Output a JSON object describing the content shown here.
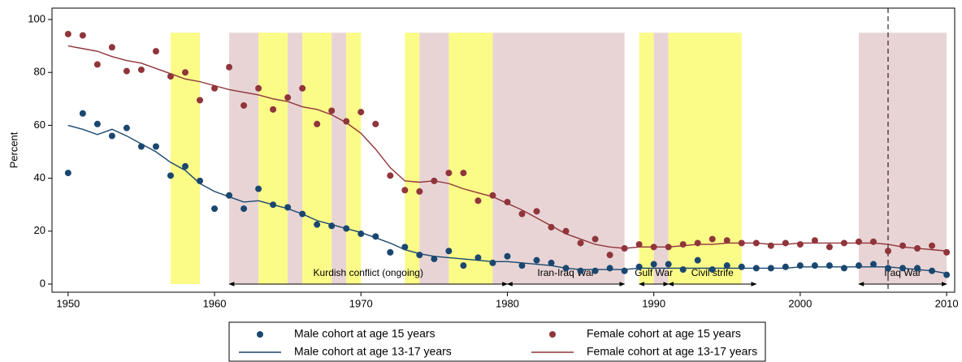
{
  "chart_data": {
    "type": "scatter",
    "y_label": "Percent",
    "x": [
      1950,
      1951,
      1952,
      1953,
      1954,
      1955,
      1956,
      1957,
      1958,
      1959,
      1960,
      1961,
      1962,
      1963,
      1964,
      1965,
      1966,
      1967,
      1968,
      1969,
      1970,
      1971,
      1972,
      1973,
      1974,
      1975,
      1976,
      1977,
      1978,
      1979,
      1980,
      1981,
      1982,
      1983,
      1984,
      1985,
      1986,
      1987,
      1988,
      1989,
      1990,
      1991,
      1992,
      1993,
      1994,
      1995,
      1996,
      1997,
      1998,
      1999,
      2000,
      2001,
      2002,
      2003,
      2004,
      2005,
      2006,
      2007,
      2008,
      2009,
      2010
    ],
    "series": [
      {
        "name": "Male cohort at age 15 years",
        "type": "scatter",
        "color": "#1a476f",
        "values": [
          42,
          64.5,
          60.5,
          56,
          59,
          52,
          52,
          41,
          44.5,
          39,
          28.5,
          33.5,
          28.5,
          36,
          30,
          29,
          26.5,
          22.5,
          22,
          21,
          19,
          18,
          12,
          14,
          11,
          9.5,
          12.5,
          7,
          10,
          8,
          10.5,
          7,
          9,
          8,
          6,
          5,
          5,
          6,
          5,
          6.5,
          7.5,
          7.5,
          5.5,
          9,
          5.5,
          7,
          6.5,
          6,
          6,
          6.5,
          7,
          7,
          7,
          6,
          7,
          7.5,
          6,
          6,
          6,
          5,
          3.5
        ]
      },
      {
        "name": "Female cohort at age 15 years",
        "type": "scatter",
        "color": "#90353b",
        "values": [
          94.5,
          94,
          83,
          89.5,
          80.5,
          81,
          88,
          78.5,
          80,
          69.5,
          74,
          82,
          67.5,
          74,
          66,
          70.5,
          74,
          60.5,
          65.5,
          61.5,
          65,
          60.5,
          41,
          35.5,
          35,
          39,
          42,
          42,
          31.5,
          33.5,
          31,
          26.5,
          27.5,
          21.5,
          20,
          15.5,
          17,
          11,
          13.5,
          15,
          14,
          14,
          15,
          15.5,
          17,
          16.5,
          15.5,
          15.5,
          14.5,
          15.5,
          15,
          16.5,
          14,
          15.5,
          16,
          16,
          12.5,
          14.5,
          13.5,
          14.5,
          12
        ]
      },
      {
        "name": "Male cohort at age 13-17 years",
        "type": "line",
        "color": "#1a476f",
        "values": [
          60,
          58.5,
          56.5,
          58.5,
          56,
          53,
          50,
          46,
          43,
          38,
          35,
          33,
          31,
          31.5,
          30,
          28.5,
          26.5,
          24,
          22.5,
          21,
          19.5,
          17.5,
          15.5,
          13,
          11.5,
          10.5,
          10,
          9.5,
          9,
          8.5,
          8.5,
          8,
          7.5,
          7,
          6,
          5.5,
          5.5,
          5.5,
          5.5,
          6,
          6,
          6,
          6,
          6,
          6,
          6,
          6,
          6,
          6,
          6,
          6.5,
          6.5,
          6.5,
          6.5,
          6.5,
          6.5,
          6.5,
          6,
          5.5,
          5,
          4
        ]
      },
      {
        "name": "Female cohort at age 13-17 years",
        "type": "line",
        "color": "#90353b",
        "values": [
          90,
          89,
          88,
          86,
          84.5,
          83.5,
          81.5,
          79.5,
          77.5,
          76.5,
          75,
          73.5,
          72.5,
          71.5,
          70,
          69,
          67,
          66,
          64,
          61,
          57,
          51,
          44,
          39,
          38.5,
          39,
          38,
          36,
          34.5,
          33,
          30.5,
          28,
          25,
          22,
          19,
          17,
          15,
          14,
          13.5,
          14,
          14,
          14,
          14.5,
          15,
          15,
          15.5,
          15.5,
          15.5,
          15,
          15,
          15.5,
          15.5,
          15.5,
          15.5,
          15.5,
          15.5,
          15,
          14,
          13.5,
          13,
          12.5
        ]
      }
    ],
    "xlim": [
      1948.9,
      2010.55
    ],
    "ylim": [
      -3.07,
      104.3
    ],
    "xticks": [
      1950,
      1960,
      1970,
      1980,
      1990,
      2000,
      2010
    ],
    "yticks": [
      0,
      20,
      40,
      60,
      80,
      100
    ],
    "band_top": 95,
    "periods": [
      {
        "start": 1957,
        "end": 1959,
        "color": "#fbfb88"
      },
      {
        "start": 1961,
        "end": 1963,
        "color": "#e8d4d5"
      },
      {
        "start": 1963,
        "end": 1965,
        "color": "#fbfb88"
      },
      {
        "start": 1965,
        "end": 1966,
        "color": "#e8d4d5"
      },
      {
        "start": 1966,
        "end": 1968,
        "color": "#fbfb88"
      },
      {
        "start": 1968,
        "end": 1969,
        "color": "#e8d4d5"
      },
      {
        "start": 1969,
        "end": 1970,
        "color": "#fbfb88"
      },
      {
        "start": 1973,
        "end": 1974,
        "color": "#fbfb88"
      },
      {
        "start": 1974,
        "end": 1976,
        "color": "#e8d4d5"
      },
      {
        "start": 1976,
        "end": 1979,
        "color": "#fbfb88"
      },
      {
        "start": 1979,
        "end": 1988,
        "color": "#e8d4d5"
      },
      {
        "start": 1989,
        "end": 1990,
        "color": "#fbfb88"
      },
      {
        "start": 1990,
        "end": 1991,
        "color": "#e8d4d5"
      },
      {
        "start": 1991,
        "end": 1996,
        "color": "#fbfb88"
      },
      {
        "start": 2004,
        "end": 2010,
        "color": "#e8d4d5"
      }
    ],
    "annotations": [
      {
        "label": "Kurdish conflict (ongoing)",
        "start": 1961,
        "end": 1980
      },
      {
        "label": "Iran-Iraq War",
        "start": 1980,
        "end": 1988
      },
      {
        "label": "Gulf War",
        "start": 1989,
        "end": 1991
      },
      {
        "label": "Civil strife",
        "start": 1991,
        "end": 1997
      },
      {
        "label": "Iraq War",
        "start": 2004,
        "end": 2010
      }
    ],
    "vline": 2006,
    "legend": "bottom"
  }
}
